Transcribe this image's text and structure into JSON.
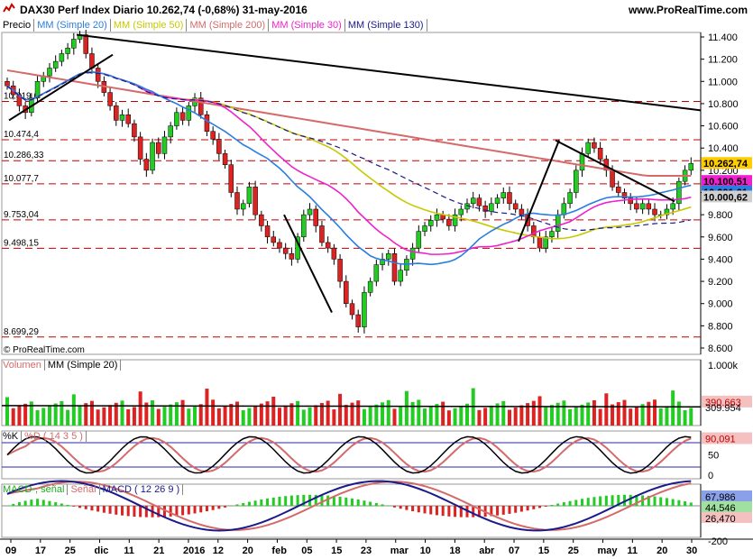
{
  "header": {
    "title": "DAX30 Perf Index   Diario   10.262,74 (-0,68%)   31-may-2016",
    "site": "www.ProRealTime.com"
  },
  "legend": {
    "price": "Precio",
    "mm20": "MM (Simple 20)",
    "mm50": "MM (Simple 50)",
    "mm200": "MM (Simple 200)",
    "mm30": "MM (Simple 30)",
    "mm130": "MM (Simple 130)"
  },
  "colors": {
    "up": "#22cc22",
    "down": "#dd2222",
    "mm20": "#2a7de1",
    "mm50": "#c8c800",
    "mm200": "#d46a6a",
    "mm30": "#ee22cc",
    "mm130": "#1a1a8a",
    "grid_dash": "#c00000"
  },
  "copyright": "© ProRealTime.com",
  "volume_legend": {
    "vol": "Volumen",
    "mm": "MM (Simple 20)"
  },
  "stoch_legend": {
    "k": "%K",
    "d": "%D ( 14 3 5 )"
  },
  "macd_legend": {
    "m1": "MACD-, señal",
    "m2": "Señal",
    "m3": "MACD ( 12 26 9 )"
  },
  "chart_data": [
    {
      "type": "candlestick",
      "title": "DAX30 Perf Index",
      "last": "10.262,74",
      "ylim": [
        8600,
        11500
      ],
      "y_ticks": [
        "11.400",
        "11.200",
        "11.000",
        "10.800",
        "10.600",
        "10.400",
        "10.200",
        "10.000",
        "9.800",
        "9.600",
        "9.400",
        "9.200",
        "9.000",
        "8.800",
        "8.600"
      ],
      "levels": [
        "10.819,6",
        "10.474,4",
        "10.286,33",
        "10.077,7",
        "9.753,04",
        "9.498,15",
        "8.699,29"
      ],
      "right_labels": [
        "10.262,74",
        "10.100,51",
        "10.001,01",
        "10.000,62"
      ],
      "x_ticks": [
        "09",
        "17",
        "25",
        "dic",
        "11",
        "21",
        "2016",
        "12",
        "20",
        "feb",
        "05",
        "15",
        "23",
        "mar",
        "10",
        "18",
        "abr",
        "07",
        "15",
        "25",
        "may",
        "11",
        "20",
        "30"
      ],
      "close": [
        10960,
        10880,
        10780,
        10720,
        10850,
        11000,
        11050,
        11120,
        11180,
        11250,
        11300,
        11380,
        11420,
        11250,
        11120,
        11000,
        10900,
        10780,
        10650,
        10700,
        10620,
        10500,
        10300,
        10200,
        10450,
        10350,
        10500,
        10600,
        10720,
        10650,
        10780,
        10850,
        10700,
        10550,
        10480,
        10350,
        10250,
        10000,
        9850,
        9900,
        10050,
        9800,
        9700,
        9600,
        9550,
        9500,
        9450,
        9400,
        9600,
        9800,
        9850,
        9700,
        9550,
        9500,
        9400,
        9200,
        9000,
        8900,
        8790,
        9100,
        9200,
        9350,
        9400,
        9450,
        9200,
        9300,
        9400,
        9500,
        9650,
        9700,
        9750,
        9800,
        9760,
        9700,
        9800,
        9850,
        9900,
        9950,
        9880,
        9830,
        9900,
        9950,
        10000,
        9900,
        9850,
        9800,
        9700,
        9600,
        9500,
        9600,
        9650,
        9800,
        9900,
        10000,
        10200,
        10350,
        10450,
        10400,
        10300,
        10200,
        10050,
        10000,
        9950,
        9900,
        9850,
        9900,
        9850,
        9800,
        9800,
        9850,
        9900,
        10100,
        10200,
        10262
      ],
      "volume_ticks": [
        "1.000k"
      ],
      "volume_labels": [
        "390.663",
        "309.954"
      ],
      "stoch_ticks": [
        "50",
        "0"
      ],
      "stoch_label": "90,091",
      "macd_ticks": [
        "-200"
      ],
      "macd_labels": [
        "67,986",
        "44,546",
        "26,470"
      ]
    }
  ]
}
